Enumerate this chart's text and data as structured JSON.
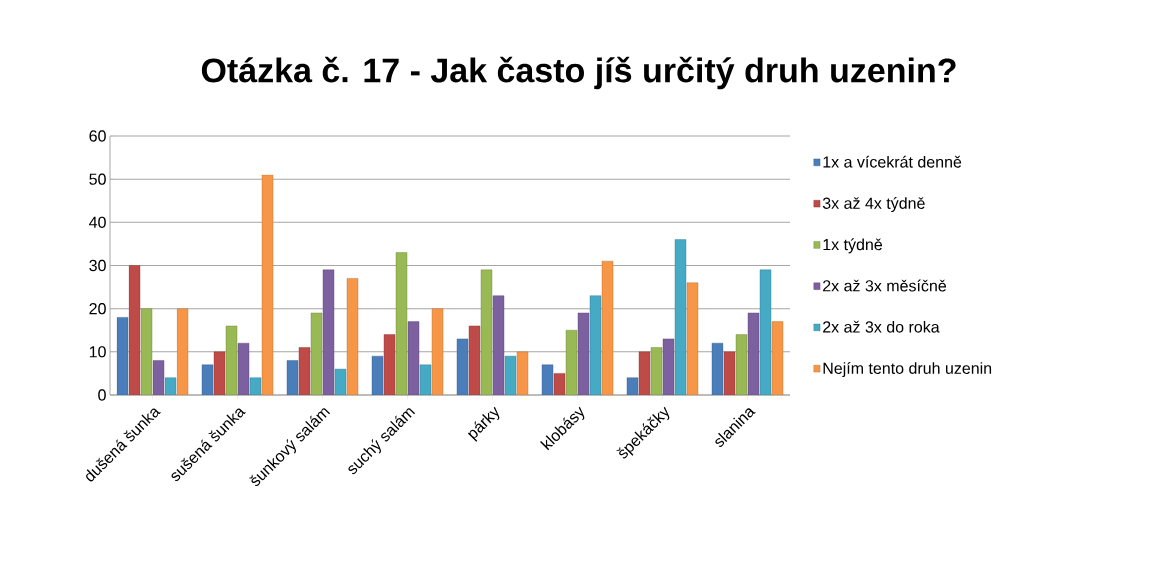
{
  "chart_data": {
    "type": "bar",
    "title": "Otázka č. 17 - Jak často jíš určitý druh uzenin?",
    "categories": [
      "dušená šunka",
      "sušená šunka",
      "šunkový salám",
      "suchý salám",
      "párky",
      "klobásy",
      "špekáčky",
      "slanina"
    ],
    "series": [
      {
        "name": "1x a vícekrát denně",
        "color": "#4a7ebb",
        "values": [
          18,
          7,
          8,
          9,
          13,
          7,
          4,
          12
        ]
      },
      {
        "name": "3x až 4x týdně",
        "color": "#be4b48",
        "values": [
          30,
          10,
          11,
          14,
          16,
          5,
          10,
          10
        ]
      },
      {
        "name": "1x týdně",
        "color": "#98b954",
        "values": [
          20,
          16,
          19,
          33,
          29,
          15,
          11,
          14
        ]
      },
      {
        "name": "2x až 3x měsíčně",
        "color": "#7d60a0",
        "values": [
          8,
          12,
          29,
          17,
          23,
          19,
          13,
          19
        ]
      },
      {
        "name": "2x až 3x do roka",
        "color": "#46aac5",
        "values": [
          4,
          4,
          6,
          7,
          9,
          23,
          36,
          29
        ]
      },
      {
        "name": "Nejím tento druh uzenin",
        "color": "#f79646",
        "values": [
          20,
          51,
          27,
          20,
          10,
          31,
          26,
          17
        ]
      }
    ],
    "ylim": [
      0,
      60
    ],
    "yticks": [
      0,
      10,
      20,
      30,
      40,
      50,
      60
    ],
    "grid": "y",
    "legend": "right"
  }
}
